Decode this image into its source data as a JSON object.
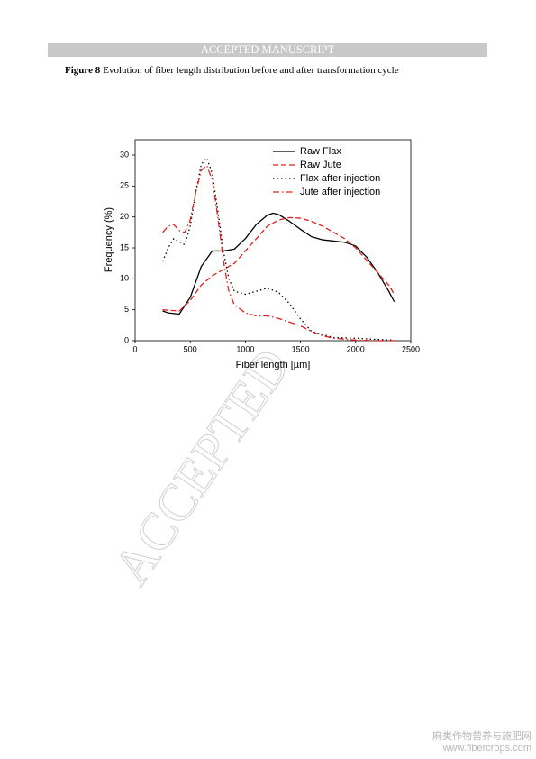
{
  "header": "ACCEPTED MANUSCRIPT",
  "caption": {
    "label": "Figure 8",
    "text": "Evolution of fiber length distribution before and after transformation cycle"
  },
  "watermark": "ACCEPTED",
  "site": {
    "name": "麻类作物营养与施肥网",
    "url": "www.fibercrops.com"
  },
  "chart_data": {
    "type": "line",
    "xlabel": "Fiber length [µm]",
    "ylabel": "Frequency (%)",
    "xlim": [
      0,
      2500
    ],
    "xticks": [
      0,
      500,
      1000,
      1500,
      2000,
      2500
    ],
    "ylim": [
      0,
      30
    ],
    "yticks": [
      0,
      5,
      10,
      15,
      20,
      25,
      30
    ],
    "legend": "top-right",
    "series": [
      {
        "name": "Raw Flax",
        "color": "#000000",
        "style": "solid",
        "x": [
          250,
          300,
          400,
          500,
          600,
          700,
          800,
          900,
          1000,
          1100,
          1200,
          1250,
          1300,
          1400,
          1500,
          1600,
          1700,
          1800,
          1900,
          2000,
          2100,
          2200,
          2300,
          2350
        ],
        "values": [
          4.8,
          4.5,
          4.3,
          7,
          12,
          14.5,
          14.5,
          14.8,
          16.5,
          18.8,
          20.3,
          20.6,
          20.4,
          19.3,
          18,
          16.8,
          16.3,
          16.1,
          15.9,
          15.3,
          13.5,
          11,
          8,
          6.3
        ]
      },
      {
        "name": "Raw Jute",
        "color": "#e0201b",
        "style": "dashed",
        "x": [
          250,
          400,
          500,
          600,
          700,
          800,
          900,
          1000,
          1100,
          1200,
          1300,
          1400,
          1500,
          1600,
          1700,
          1800,
          1900,
          2000,
          2100,
          2200,
          2300,
          2350
        ],
        "values": [
          5,
          4.8,
          6.5,
          9,
          10.5,
          11.5,
          12.5,
          14.5,
          16.5,
          18.5,
          19.5,
          19.9,
          19.8,
          19.3,
          18.5,
          17.5,
          16.5,
          15,
          13,
          11,
          9,
          7.5
        ]
      },
      {
        "name": "Flax after injection",
        "color": "#000000",
        "style": "dotted",
        "x": [
          250,
          300,
          350,
          400,
          450,
          500,
          550,
          600,
          650,
          700,
          750,
          800,
          850,
          900,
          1000,
          1100,
          1200,
          1300,
          1400,
          1500,
          1600,
          1800,
          2000,
          2200,
          2350
        ],
        "values": [
          12.8,
          15,
          16.5,
          16,
          15.5,
          18.5,
          24,
          28.5,
          29.5,
          27,
          21,
          14.5,
          10,
          8,
          7.5,
          8,
          8.5,
          7.8,
          6,
          3.5,
          1.5,
          0.5,
          0.4,
          0.2,
          0.1
        ]
      },
      {
        "name": "Jute after injection",
        "color": "#e0201b",
        "style": "dashdot",
        "x": [
          250,
          300,
          350,
          400,
          450,
          500,
          550,
          600,
          650,
          700,
          750,
          800,
          850,
          900,
          1000,
          1100,
          1200,
          1300,
          1400,
          1500,
          1600,
          1700,
          1800,
          2000,
          2200,
          2350
        ],
        "values": [
          17.5,
          18.5,
          18.8,
          17.8,
          17.5,
          19.5,
          24,
          27.5,
          28.3,
          26,
          20,
          13,
          8,
          5.8,
          4.5,
          4,
          4,
          3.6,
          3,
          2.4,
          1.5,
          0.8,
          0.4,
          0.1,
          0,
          0
        ]
      }
    ]
  }
}
